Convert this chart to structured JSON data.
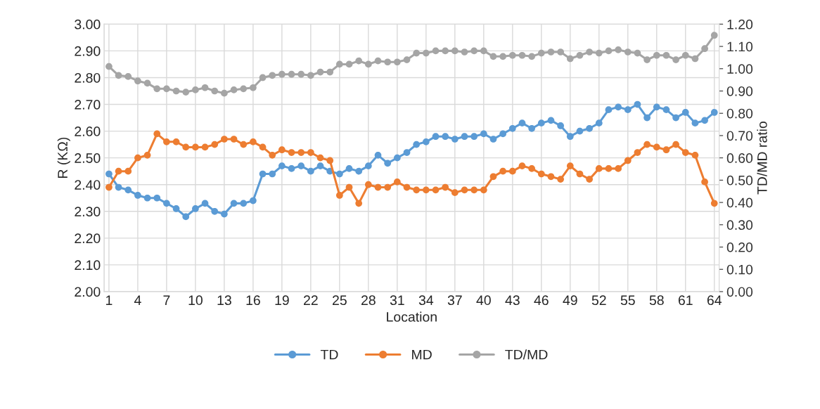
{
  "chart_data": {
    "type": "line",
    "xlabel": "Location",
    "ylabel": "R (KΩ)",
    "y2label": "TD/MD ratio",
    "categories": [
      "1",
      null,
      null,
      "4",
      null,
      null,
      "7",
      null,
      null,
      "10",
      null,
      null,
      "13",
      null,
      null,
      "16",
      null,
      null,
      "19",
      null,
      null,
      "22",
      null,
      null,
      "25",
      null,
      null,
      "28",
      null,
      null,
      "31",
      null,
      null,
      "34",
      null,
      null,
      "37",
      null,
      null,
      "40",
      null,
      null,
      "43",
      null,
      null,
      "46",
      null,
      null,
      "49",
      null,
      null,
      "52",
      null,
      null,
      "55",
      null,
      null,
      "58",
      null,
      null,
      "61",
      null,
      null,
      "64"
    ],
    "series": [
      {
        "name": "TD",
        "color": "#5b9bd5",
        "values": [
          2.44,
          2.39,
          2.38,
          2.36,
          2.35,
          2.35,
          2.33,
          2.31,
          2.28,
          2.31,
          2.33,
          2.3,
          2.29,
          2.33,
          2.33,
          2.34,
          2.44,
          2.44,
          2.47,
          2.46,
          2.47,
          2.45,
          2.47,
          2.45,
          2.44,
          2.46,
          2.45,
          2.47,
          2.51,
          2.48,
          2.5,
          2.52,
          2.55,
          2.56,
          2.58,
          2.58,
          2.57,
          2.58,
          2.58,
          2.59,
          2.57,
          2.59,
          2.61,
          2.63,
          2.61,
          2.63,
          2.64,
          2.62,
          2.58,
          2.6,
          2.61,
          2.63,
          2.68,
          2.69,
          2.68,
          2.7,
          2.65,
          2.69,
          2.68,
          2.65,
          2.67,
          2.63,
          2.64,
          2.67
        ]
      },
      {
        "name": "MD",
        "color": "#ed7d31",
        "values": [
          2.39,
          2.45,
          2.45,
          2.5,
          2.51,
          2.59,
          2.56,
          2.56,
          2.54,
          2.54,
          2.54,
          2.55,
          2.57,
          2.57,
          2.55,
          2.56,
          2.54,
          2.51,
          2.53,
          2.52,
          2.52,
          2.52,
          2.5,
          2.49,
          2.36,
          2.39,
          2.33,
          2.4,
          2.39,
          2.39,
          2.41,
          2.39,
          2.38,
          2.38,
          2.38,
          2.39,
          2.37,
          2.38,
          2.38,
          2.38,
          2.43,
          2.45,
          2.45,
          2.47,
          2.46,
          2.44,
          2.43,
          2.42,
          2.47,
          2.44,
          2.42,
          2.46,
          2.46,
          2.46,
          2.49,
          2.52,
          2.55,
          2.54,
          2.53,
          2.55,
          2.52,
          2.51,
          2.41,
          2.33
        ]
      },
      {
        "name": "TD/MD",
        "color": "#a5a5a5",
        "axis": "y2",
        "values": [
          1.01,
          0.97,
          0.965,
          0.945,
          0.935,
          0.91,
          0.91,
          0.9,
          0.895,
          0.905,
          0.915,
          0.9,
          0.89,
          0.905,
          0.91,
          0.915,
          0.96,
          0.97,
          0.975,
          0.975,
          0.975,
          0.97,
          0.985,
          0.985,
          1.02,
          1.02,
          1.035,
          1.02,
          1.035,
          1.03,
          1.03,
          1.04,
          1.07,
          1.07,
          1.08,
          1.08,
          1.08,
          1.075,
          1.08,
          1.08,
          1.055,
          1.055,
          1.06,
          1.06,
          1.055,
          1.07,
          1.075,
          1.075,
          1.045,
          1.06,
          1.075,
          1.07,
          1.08,
          1.085,
          1.075,
          1.07,
          1.04,
          1.06,
          1.06,
          1.04,
          1.06,
          1.045,
          1.09,
          1.15
        ]
      }
    ],
    "ylim": [
      2.0,
      3.0
    ],
    "yticks": [
      {
        "value": 2.0,
        "label": "2.00"
      },
      {
        "value": 2.1,
        "label": "2.10"
      },
      {
        "value": 2.2,
        "label": "2.20"
      },
      {
        "value": 2.3,
        "label": "2.30"
      },
      {
        "value": 2.4,
        "label": "2.40"
      },
      {
        "value": 2.5,
        "label": "2.50"
      },
      {
        "value": 2.6,
        "label": "2.60"
      },
      {
        "value": 2.7,
        "label": "2.70"
      },
      {
        "value": 2.8,
        "label": "2.80"
      },
      {
        "value": 2.9,
        "label": "2.90"
      },
      {
        "value": 3.0,
        "label": "3.00"
      }
    ],
    "y2lim": [
      0.0,
      1.2
    ],
    "y2ticks": [
      {
        "value": 0.0,
        "label": "0.00"
      },
      {
        "value": 0.1,
        "label": "0.10"
      },
      {
        "value": 0.2,
        "label": "0.20"
      },
      {
        "value": 0.3,
        "label": "0.30"
      },
      {
        "value": 0.4,
        "label": "0.40"
      },
      {
        "value": 0.5,
        "label": "0.50"
      },
      {
        "value": 0.6,
        "label": "0.60"
      },
      {
        "value": 0.7,
        "label": "0.70"
      },
      {
        "value": 0.8,
        "label": "0.80"
      },
      {
        "value": 0.9,
        "label": "0.90"
      },
      {
        "value": 1.0,
        "label": "1.00"
      },
      {
        "value": 1.1,
        "label": "1.10"
      },
      {
        "value": 1.2,
        "label": "1.20"
      }
    ],
    "grid": true,
    "legend": "bottom",
    "marker": "circle",
    "line_style": "solid"
  }
}
